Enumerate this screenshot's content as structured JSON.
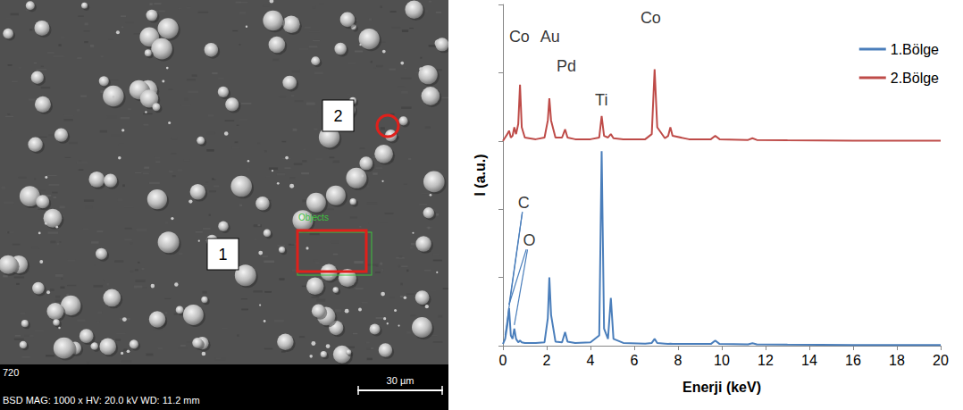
{
  "chart_data": {
    "type": "line",
    "x_label": "Enerji (keV)",
    "y_label": "I (a.u.)",
    "x": [
      0,
      0.1,
      0.2,
      0.28,
      0.36,
      0.44,
      0.52,
      0.6,
      0.7,
      0.78,
      0.86,
      1,
      1.5,
      1.9,
      2.05,
      2.12,
      2.2,
      2.4,
      2.7,
      2.84,
      2.95,
      3.3,
      4,
      4.4,
      4.51,
      4.62,
      4.8,
      4.93,
      5.05,
      5.5,
      6.5,
      6.8,
      6.93,
      7.05,
      7.4,
      7.55,
      7.65,
      7.75,
      8.5,
      9.5,
      9.7,
      9.9,
      11.2,
      11.4,
      11.6,
      13,
      16,
      20
    ],
    "series": [
      {
        "name": "1.Bölge",
        "color": "#4a7ebb",
        "values": [
          0.5,
          2,
          6,
          11,
          3,
          2,
          5,
          2,
          1,
          1.5,
          1,
          0.8,
          0.8,
          1,
          8,
          20,
          9,
          1.2,
          1,
          4,
          1.2,
          0.8,
          1,
          3,
          57,
          5,
          2,
          14,
          2,
          0.8,
          0.6,
          0.8,
          2,
          0.8,
          0.6,
          0.5,
          0.6,
          0.5,
          0.5,
          0.5,
          1.5,
          0.5,
          0.4,
          0.7,
          0.4,
          0.3,
          0.2,
          0.2
        ]
      },
      {
        "name": "2.Bölge",
        "color": "#be4b48",
        "values": [
          60,
          61,
          62,
          63,
          61,
          61.5,
          64,
          62,
          65,
          76.5,
          64,
          61,
          60.5,
          61,
          66,
          72.5,
          66,
          61,
          61,
          63.4,
          61,
          60.5,
          60.5,
          61,
          67.3,
          61.5,
          61,
          62,
          60.8,
          60.5,
          60.5,
          62,
          81,
          64,
          60.8,
          61.5,
          64,
          61.5,
          60.5,
          60.5,
          61.5,
          60.5,
          60.3,
          60.8,
          60.3,
          60.2,
          60.1,
          60.1
        ]
      }
    ],
    "xlim": [
      0,
      20
    ],
    "xticks": [
      0,
      2,
      4,
      6,
      8,
      10,
      12,
      14,
      16,
      18,
      20
    ],
    "ylim": [
      0,
      100
    ],
    "yticks": [
      0,
      20,
      40,
      60,
      80,
      100
    ],
    "tick_labels": "x",
    "grid": false,
    "legend": "upper right",
    "annotations": [
      {
        "text": "Co",
        "x": 0.75,
        "y": 90.5
      },
      {
        "text": "Au",
        "x": 2.15,
        "y": 90.5
      },
      {
        "text": "Pd",
        "x": 2.9,
        "y": 82
      },
      {
        "text": "Ti",
        "x": 4.5,
        "y": 72
      },
      {
        "text": "Co",
        "x": 6.75,
        "y": 96
      },
      {
        "text": "C",
        "x": 0.95,
        "y": 42,
        "arrow_to": [
          0.1,
          0.28
        ]
      },
      {
        "text": "O",
        "x": 1.2,
        "y": 31,
        "arrow_to": [
          0.28,
          0.52
        ]
      }
    ]
  },
  "sem_image": {
    "region_labels": [
      "1",
      "2"
    ],
    "objects_label": "Objects",
    "frame_id": "720",
    "info": "BSD MAG: 1000 x HV: 20.0 kV WD: 11.2 mm",
    "scale_bar": "30 µm"
  }
}
